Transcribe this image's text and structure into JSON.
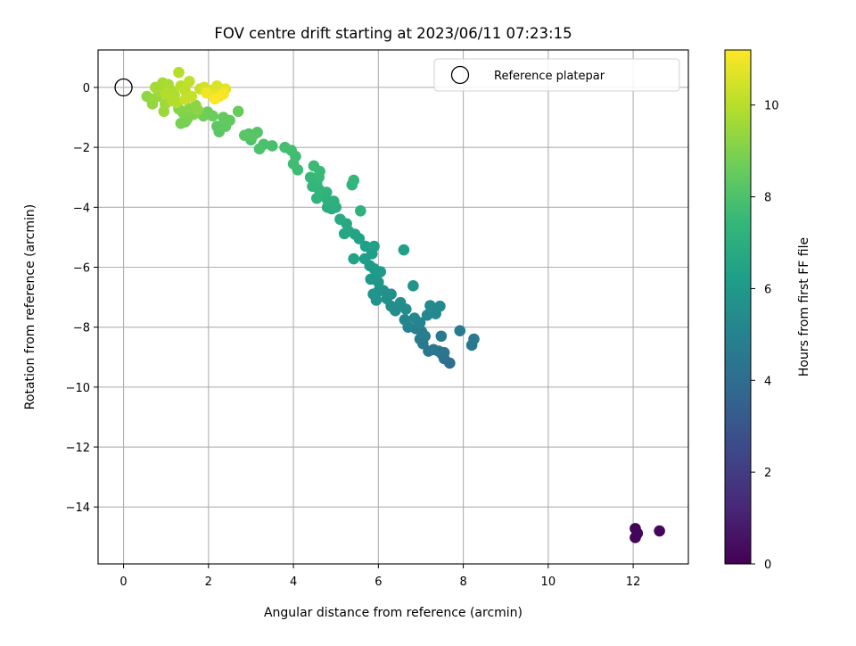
{
  "chart_data": {
    "type": "scatter",
    "title": "FOV centre drift starting at 2023/06/11 07:23:15",
    "xlabel": "Angular distance from reference (arcmin)",
    "ylabel": "Rotation from reference (arcmin)",
    "xlim": [
      -0.6,
      13.3
    ],
    "ylim": [
      -15.9,
      1.25
    ],
    "xticks": [
      0,
      2,
      4,
      6,
      8,
      10,
      12
    ],
    "yticks": [
      0,
      -2,
      -4,
      -6,
      -8,
      -10,
      -12,
      -14
    ],
    "grid": true,
    "legend": {
      "position": "top-right",
      "entries": [
        "Reference platepar"
      ]
    },
    "reference_point": {
      "x": 0,
      "y": 0
    },
    "colorbar": {
      "label": "Hours from first FF file",
      "range": [
        0,
        11.2
      ],
      "ticks": [
        0,
        2,
        4,
        6,
        8,
        10
      ],
      "colormap": [
        "#440154",
        "#482878",
        "#3e4989",
        "#31688e",
        "#26828e",
        "#1f9e89",
        "#35b779",
        "#6ece58",
        "#b5de2b",
        "#fde725"
      ]
    },
    "series": [
      {
        "values": [
          {
            "x": 12.05,
            "y": -15.02,
            "h": 0.05
          },
          {
            "x": 12.05,
            "y": -14.72,
            "h": 0.1
          },
          {
            "x": 12.1,
            "y": -14.88,
            "h": 0.15
          },
          {
            "x": 12.62,
            "y": -14.8,
            "h": 0.2
          },
          {
            "x": 7.68,
            "y": -9.2,
            "h": 4.0
          },
          {
            "x": 7.55,
            "y": -9.05,
            "h": 4.1
          },
          {
            "x": 7.5,
            "y": -8.9,
            "h": 4.2
          },
          {
            "x": 7.42,
            "y": -8.8,
            "h": 4.3
          },
          {
            "x": 7.3,
            "y": -8.75,
            "h": 4.4
          },
          {
            "x": 7.18,
            "y": -8.8,
            "h": 4.5
          },
          {
            "x": 7.05,
            "y": -8.55,
            "h": 4.6
          },
          {
            "x": 6.98,
            "y": -8.4,
            "h": 4.7
          },
          {
            "x": 7.1,
            "y": -8.3,
            "h": 4.75
          },
          {
            "x": 7.02,
            "y": -8.15,
            "h": 4.8
          },
          {
            "x": 7.48,
            "y": -8.3,
            "h": 4.6
          },
          {
            "x": 7.55,
            "y": -8.85,
            "h": 4.35
          },
          {
            "x": 8.2,
            "y": -8.6,
            "h": 4.5
          },
          {
            "x": 8.25,
            "y": -8.4,
            "h": 4.55
          },
          {
            "x": 7.92,
            "y": -8.12,
            "h": 4.65
          },
          {
            "x": 6.88,
            "y": -8.05,
            "h": 4.9
          },
          {
            "x": 6.7,
            "y": -8.0,
            "h": 5.0
          },
          {
            "x": 6.62,
            "y": -7.75,
            "h": 5.1
          },
          {
            "x": 6.85,
            "y": -7.7,
            "h": 5.15
          },
          {
            "x": 6.98,
            "y": -7.85,
            "h": 5.05
          },
          {
            "x": 7.15,
            "y": -7.6,
            "h": 5.2
          },
          {
            "x": 7.35,
            "y": -7.55,
            "h": 5.25
          },
          {
            "x": 7.45,
            "y": -7.3,
            "h": 5.3
          },
          {
            "x": 7.22,
            "y": -7.28,
            "h": 5.35
          },
          {
            "x": 6.4,
            "y": -7.45,
            "h": 5.4
          },
          {
            "x": 6.3,
            "y": -7.3,
            "h": 5.5
          },
          {
            "x": 6.2,
            "y": -7.05,
            "h": 5.55
          },
          {
            "x": 6.3,
            "y": -6.9,
            "h": 5.6
          },
          {
            "x": 6.12,
            "y": -6.78,
            "h": 5.65
          },
          {
            "x": 5.95,
            "y": -7.1,
            "h": 5.7
          },
          {
            "x": 6.0,
            "y": -6.8,
            "h": 5.75
          },
          {
            "x": 5.88,
            "y": -6.9,
            "h": 5.8
          },
          {
            "x": 6.52,
            "y": -7.18,
            "h": 5.5
          },
          {
            "x": 6.65,
            "y": -7.4,
            "h": 5.45
          },
          {
            "x": 6.82,
            "y": -6.62,
            "h": 5.8
          },
          {
            "x": 6.0,
            "y": -6.5,
            "h": 5.9
          },
          {
            "x": 5.82,
            "y": -6.4,
            "h": 5.95
          },
          {
            "x": 5.95,
            "y": -6.25,
            "h": 6.0
          },
          {
            "x": 6.05,
            "y": -6.15,
            "h": 6.05
          },
          {
            "x": 5.9,
            "y": -6.05,
            "h": 6.1
          },
          {
            "x": 5.8,
            "y": -5.95,
            "h": 6.15
          },
          {
            "x": 5.68,
            "y": -5.72,
            "h": 6.2
          },
          {
            "x": 5.85,
            "y": -5.55,
            "h": 6.25
          },
          {
            "x": 5.7,
            "y": -5.3,
            "h": 6.3
          },
          {
            "x": 5.9,
            "y": -5.3,
            "h": 6.35
          },
          {
            "x": 5.42,
            "y": -5.72,
            "h": 6.4
          },
          {
            "x": 5.55,
            "y": -5.05,
            "h": 6.45
          },
          {
            "x": 5.45,
            "y": -4.9,
            "h": 6.5
          },
          {
            "x": 5.3,
            "y": -4.8,
            "h": 6.55
          },
          {
            "x": 5.2,
            "y": -4.88,
            "h": 6.6
          },
          {
            "x": 6.6,
            "y": -5.42,
            "h": 6.3
          },
          {
            "x": 5.25,
            "y": -4.55,
            "h": 6.7
          },
          {
            "x": 5.1,
            "y": -4.4,
            "h": 6.8
          },
          {
            "x": 4.9,
            "y": -4.05,
            "h": 6.9
          },
          {
            "x": 4.8,
            "y": -4.0,
            "h": 6.95
          },
          {
            "x": 5.0,
            "y": -4.0,
            "h": 7.0
          },
          {
            "x": 4.95,
            "y": -3.8,
            "h": 7.05
          },
          {
            "x": 4.8,
            "y": -3.75,
            "h": 7.1
          },
          {
            "x": 4.65,
            "y": -3.6,
            "h": 7.15
          },
          {
            "x": 4.78,
            "y": -3.5,
            "h": 7.2
          },
          {
            "x": 4.55,
            "y": -3.7,
            "h": 7.25
          },
          {
            "x": 4.6,
            "y": -3.4,
            "h": 7.3
          },
          {
            "x": 4.45,
            "y": -3.3,
            "h": 7.35
          },
          {
            "x": 4.55,
            "y": -3.2,
            "h": 7.4
          },
          {
            "x": 4.4,
            "y": -3.0,
            "h": 7.45
          },
          {
            "x": 4.6,
            "y": -3.0,
            "h": 7.5
          },
          {
            "x": 5.38,
            "y": -3.25,
            "h": 7.3
          },
          {
            "x": 5.42,
            "y": -3.1,
            "h": 7.35
          },
          {
            "x": 5.58,
            "y": -4.12,
            "h": 7.2
          },
          {
            "x": 4.62,
            "y": -2.8,
            "h": 7.55
          },
          {
            "x": 4.48,
            "y": -2.62,
            "h": 7.6
          },
          {
            "x": 4.1,
            "y": -2.75,
            "h": 7.65
          },
          {
            "x": 4.0,
            "y": -2.55,
            "h": 7.7
          },
          {
            "x": 4.05,
            "y": -2.3,
            "h": 7.75
          },
          {
            "x": 3.95,
            "y": -2.1,
            "h": 7.8
          },
          {
            "x": 3.8,
            "y": -2.0,
            "h": 7.85
          },
          {
            "x": 3.5,
            "y": -1.95,
            "h": 7.9
          },
          {
            "x": 3.3,
            "y": -1.9,
            "h": 7.95
          },
          {
            "x": 3.2,
            "y": -2.05,
            "h": 8.0
          },
          {
            "x": 3.0,
            "y": -1.75,
            "h": 8.05
          },
          {
            "x": 2.95,
            "y": -1.55,
            "h": 8.1
          },
          {
            "x": 3.15,
            "y": -1.5,
            "h": 8.15
          },
          {
            "x": 3.05,
            "y": -1.6,
            "h": 8.2
          },
          {
            "x": 2.85,
            "y": -1.6,
            "h": 8.25
          },
          {
            "x": 2.25,
            "y": -1.48,
            "h": 8.3
          },
          {
            "x": 2.2,
            "y": -1.3,
            "h": 8.35
          },
          {
            "x": 2.4,
            "y": -1.3,
            "h": 8.4
          },
          {
            "x": 2.5,
            "y": -1.1,
            "h": 8.45
          },
          {
            "x": 2.35,
            "y": -1.0,
            "h": 8.5
          },
          {
            "x": 2.7,
            "y": -0.8,
            "h": 8.55
          },
          {
            "x": 2.1,
            "y": -0.95,
            "h": 8.6
          },
          {
            "x": 1.98,
            "y": -0.82,
            "h": 8.65
          },
          {
            "x": 1.88,
            "y": -0.95,
            "h": 8.7
          },
          {
            "x": 1.45,
            "y": -1.15,
            "h": 8.8
          },
          {
            "x": 1.35,
            "y": -1.2,
            "h": 8.85
          },
          {
            "x": 1.5,
            "y": -1.05,
            "h": 8.9
          },
          {
            "x": 1.65,
            "y": -0.9,
            "h": 9.0
          },
          {
            "x": 1.4,
            "y": -0.85,
            "h": 9.05
          },
          {
            "x": 1.3,
            "y": -0.72,
            "h": 9.1
          },
          {
            "x": 1.55,
            "y": -0.7,
            "h": 9.15
          },
          {
            "x": 1.7,
            "y": -0.6,
            "h": 9.2
          },
          {
            "x": 1.75,
            "y": -0.75,
            "h": 9.25
          },
          {
            "x": 0.55,
            "y": -0.3,
            "h": 9.3
          },
          {
            "x": 0.68,
            "y": -0.55,
            "h": 9.35
          },
          {
            "x": 0.7,
            "y": -0.4,
            "h": 9.4
          },
          {
            "x": 0.8,
            "y": -0.3,
            "h": 9.45
          },
          {
            "x": 0.95,
            "y": -0.8,
            "h": 9.5
          },
          {
            "x": 0.98,
            "y": -0.55,
            "h": 9.55
          },
          {
            "x": 0.85,
            "y": -0.15,
            "h": 9.6
          },
          {
            "x": 0.75,
            "y": 0.0,
            "h": 9.65
          },
          {
            "x": 0.92,
            "y": 0.15,
            "h": 9.7
          },
          {
            "x": 1.05,
            "y": 0.1,
            "h": 9.75
          },
          {
            "x": 1.12,
            "y": -0.1,
            "h": 9.8
          },
          {
            "x": 1.2,
            "y": -0.25,
            "h": 9.85
          },
          {
            "x": 1.0,
            "y": -0.2,
            "h": 9.9
          },
          {
            "x": 1.25,
            "y": -0.5,
            "h": 9.95
          },
          {
            "x": 1.3,
            "y": 0.5,
            "h": 10.0
          },
          {
            "x": 1.35,
            "y": 0.05,
            "h": 10.05
          },
          {
            "x": 1.45,
            "y": -0.1,
            "h": 10.1
          },
          {
            "x": 1.55,
            "y": 0.2,
            "h": 10.15
          },
          {
            "x": 1.6,
            "y": -0.3,
            "h": 10.2
          },
          {
            "x": 1.8,
            "y": -0.05,
            "h": 10.3
          },
          {
            "x": 1.9,
            "y": 0.0,
            "h": 10.4
          },
          {
            "x": 2.05,
            "y": -0.1,
            "h": 10.5
          },
          {
            "x": 2.2,
            "y": 0.05,
            "h": 10.6
          },
          {
            "x": 2.3,
            "y": -0.15,
            "h": 10.7
          },
          {
            "x": 2.4,
            "y": -0.05,
            "h": 10.75
          },
          {
            "x": 2.1,
            "y": -0.25,
            "h": 10.8
          },
          {
            "x": 2.25,
            "y": -0.3,
            "h": 10.9
          },
          {
            "x": 1.95,
            "y": -0.18,
            "h": 11.0
          },
          {
            "x": 2.35,
            "y": -0.22,
            "h": 11.1
          },
          {
            "x": 2.15,
            "y": -0.38,
            "h": 11.15
          },
          {
            "x": 1.45,
            "y": -0.4,
            "h": 10.25
          },
          {
            "x": 1.15,
            "y": -0.45,
            "h": 9.9
          }
        ]
      }
    ]
  }
}
